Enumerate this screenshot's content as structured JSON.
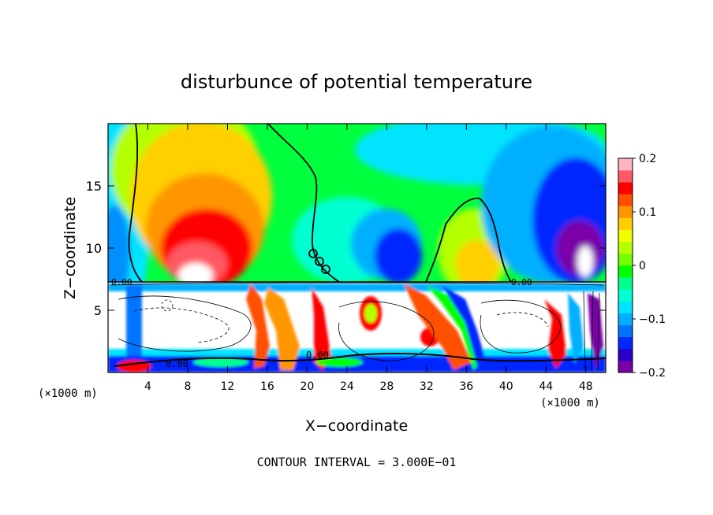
{
  "chart_data": {
    "type": "heatmap",
    "title": "disturbunce of potential temperature",
    "xlabel": "X−coordinate",
    "ylabel": "Z−coordinate",
    "x_unit_left": "(×1000 m)",
    "x_unit_right": "(×1000 m)",
    "xlim": [
      0,
      50
    ],
    "ylim": [
      0,
      20
    ],
    "x_ticks": [
      4,
      8,
      12,
      16,
      20,
      24,
      28,
      32,
      36,
      40,
      44,
      48
    ],
    "x_tick_labels": [
      "4",
      "8",
      "12",
      "16",
      "20",
      "24",
      "28",
      "32",
      "36",
      "40",
      "44",
      "48"
    ],
    "y_ticks": [
      5,
      10,
      15
    ],
    "y_tick_labels": [
      "5",
      "10",
      "15"
    ],
    "colorbar": {
      "min": -0.2,
      "max": 0.2,
      "ticks": [
        0.2,
        0.1,
        0,
        -0.1,
        -0.2
      ],
      "tick_labels": [
        "0.2",
        "0.1",
        "0",
        "−0.1",
        "−0.2"
      ],
      "colors": [
        "#7a00a8",
        "#2a00c8",
        "#0028ff",
        "#0074ff",
        "#00b0ff",
        "#00e4ff",
        "#00ffd2",
        "#00ff8c",
        "#00ff00",
        "#72ff00",
        "#b4ff00",
        "#f0ff00",
        "#ffcf00",
        "#ff9600",
        "#ff5000",
        "#ff0000",
        "#ff5a64",
        "#ffb4c4"
      ]
    },
    "contour_labels": [
      "0.00",
      "0.00",
      "0.00",
      "0.00"
    ],
    "annotation": "CONTOUR INTERVAL = 3.000E−01"
  }
}
